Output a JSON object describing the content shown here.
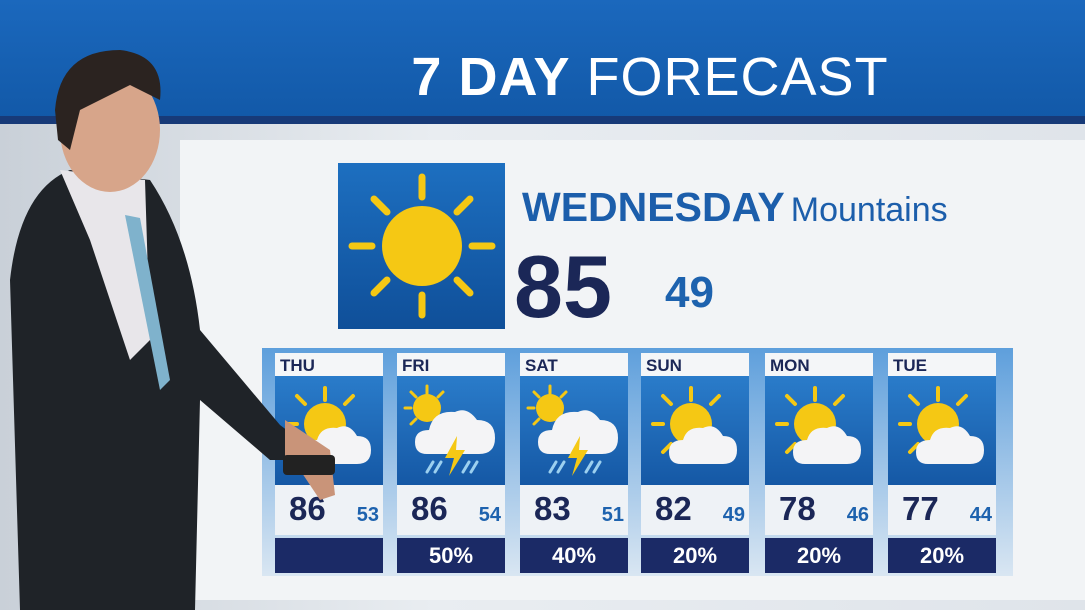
{
  "header": {
    "title_bold": "7 DAY",
    "title_regular": "FORECAST"
  },
  "today": {
    "day": "WEDNESDAY",
    "region": "Mountains",
    "high": "85",
    "low": "49",
    "icon": "sunny-icon"
  },
  "days": [
    {
      "day": "THU",
      "high": "86",
      "low": "53",
      "precip": "",
      "icon": "partly-cloudy-icon"
    },
    {
      "day": "FRI",
      "high": "86",
      "low": "54",
      "precip": "50%",
      "icon": "thunderstorm-icon"
    },
    {
      "day": "SAT",
      "high": "83",
      "low": "51",
      "precip": "40%",
      "icon": "thunderstorm-icon"
    },
    {
      "day": "SUN",
      "high": "82",
      "low": "49",
      "precip": "20%",
      "icon": "partly-cloudy-icon"
    },
    {
      "day": "MON",
      "high": "78",
      "low": "46",
      "precip": "20%",
      "icon": "partly-cloudy-icon"
    },
    {
      "day": "TUE",
      "high": "77",
      "low": "44",
      "precip": "20%",
      "icon": "partly-cloudy-icon"
    }
  ],
  "colors": {
    "banner": "#1b68bd",
    "navy": "#1b2757",
    "accent_blue": "#1c5eab",
    "sun": "#f5c814"
  }
}
